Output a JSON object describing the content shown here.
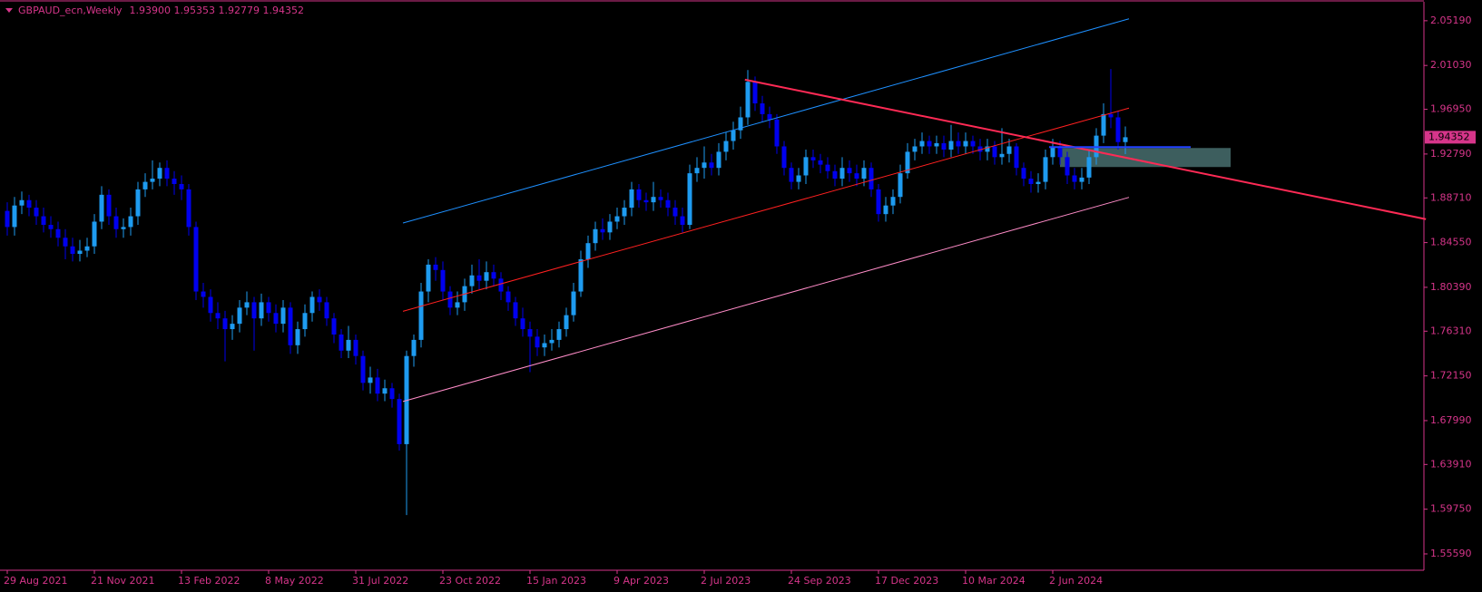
{
  "chart_data": {
    "type": "candlestick",
    "title": "GBPAUD_ecn,Weekly",
    "ohlc_label": "1.93900 1.95353 1.92779 1.94352",
    "axis_color": "#d6358a",
    "background": "#000000",
    "up_color": "#1e9bf0",
    "down_color": "#0000ee",
    "ylim": [
      1.5407,
      2.0695
    ],
    "yticks": [
      {
        "value": 2.0519,
        "label": "2.05190"
      },
      {
        "value": 2.0103,
        "label": "2.01030"
      },
      {
        "value": 1.9695,
        "label": "1.96950"
      },
      {
        "value": 1.9279,
        "label": "1.92790"
      },
      {
        "value": 1.8871,
        "label": "1.88710"
      },
      {
        "value": 1.8455,
        "label": "1.84550"
      },
      {
        "value": 1.8039,
        "label": "1.80390"
      },
      {
        "value": 1.7631,
        "label": "1.76310"
      },
      {
        "value": 1.7215,
        "label": "1.72150"
      },
      {
        "value": 1.6799,
        "label": "1.67990"
      },
      {
        "value": 1.6391,
        "label": "1.63910"
      },
      {
        "value": 1.5975,
        "label": "1.59750"
      },
      {
        "value": 1.5559,
        "label": "1.55590"
      }
    ],
    "last_price": {
      "value": 1.94352,
      "label": "1.94352"
    },
    "categories": [
      "29 Aug 2021",
      null,
      null,
      null,
      null,
      null,
      null,
      null,
      null,
      null,
      null,
      null,
      "21 Nov 2021",
      null,
      null,
      null,
      null,
      null,
      null,
      null,
      null,
      null,
      null,
      null,
      "13 Feb 2022",
      null,
      null,
      null,
      null,
      null,
      null,
      null,
      null,
      null,
      null,
      null,
      "8 May 2022",
      null,
      null,
      null,
      null,
      null,
      null,
      null,
      null,
      null,
      null,
      null,
      "31 Jul 2022",
      null,
      null,
      null,
      null,
      null,
      null,
      null,
      null,
      null,
      null,
      null,
      "23 Oct 2022",
      null,
      null,
      null,
      null,
      null,
      null,
      null,
      null,
      null,
      null,
      null,
      "15 Jan 2023",
      null,
      null,
      null,
      null,
      null,
      null,
      null,
      null,
      null,
      null,
      null,
      "9 Apr 2023",
      null,
      null,
      null,
      null,
      null,
      null,
      null,
      null,
      null,
      null,
      null,
      "2 Jul 2023",
      null,
      null,
      null,
      null,
      null,
      null,
      null,
      null,
      null,
      null,
      null,
      "24 Sep 2023",
      null,
      null,
      null,
      null,
      null,
      null,
      null,
      null,
      null,
      null,
      null,
      "17 Dec 2023",
      null,
      null,
      null,
      null,
      null,
      null,
      null,
      null,
      null,
      null,
      null,
      "10 Mar 2024",
      null,
      null,
      null,
      null,
      null,
      null,
      null,
      null,
      null,
      null,
      null,
      "2 Jun 2024",
      null,
      null,
      null,
      null,
      null,
      null,
      null,
      null,
      null,
      null
    ],
    "open": [
      1.875,
      1.86,
      1.88,
      1.885,
      1.878,
      1.87,
      1.862,
      1.858,
      1.85,
      1.842,
      1.835,
      1.838,
      1.842,
      1.865,
      1.89,
      1.87,
      1.858,
      1.86,
      1.87,
      1.895,
      1.902,
      1.905,
      1.915,
      1.905,
      1.9,
      1.895,
      1.86,
      1.8,
      1.795,
      1.78,
      1.775,
      1.765,
      1.77,
      1.785,
      1.79,
      1.775,
      1.79,
      1.78,
      1.77,
      1.785,
      1.75,
      1.765,
      1.78,
      1.795,
      1.79,
      1.775,
      1.76,
      1.745,
      1.755,
      1.74,
      1.715,
      1.72,
      1.705,
      1.71,
      1.7,
      1.658,
      1.74,
      1.755,
      1.8,
      1.825,
      1.82,
      1.8,
      1.785,
      1.79,
      1.805,
      1.815,
      1.81,
      1.818,
      1.812,
      1.8,
      1.79,
      1.775,
      1.765,
      1.758,
      1.748,
      1.752,
      1.755,
      1.765,
      1.778,
      1.8,
      1.83,
      1.845,
      1.858,
      1.855,
      1.865,
      1.87,
      1.878,
      1.895,
      1.885,
      1.883,
      1.888,
      1.885,
      1.878,
      1.87,
      1.862,
      1.91,
      1.915,
      1.92,
      1.915,
      1.93,
      1.94,
      1.95,
      1.962,
      1.995,
      1.975,
      1.965,
      1.96,
      1.935,
      1.915,
      1.902,
      1.908,
      1.925,
      1.922,
      1.918,
      1.912,
      1.905,
      1.915,
      1.91,
      1.905,
      1.915,
      1.895,
      1.872,
      1.88,
      1.888,
      1.91,
      1.93,
      1.935,
      1.94,
      1.935,
      1.938,
      1.932,
      1.94,
      1.935,
      1.94,
      1.935,
      1.93,
      1.935,
      1.925,
      1.928,
      1.935,
      1.915,
      1.905,
      1.9,
      1.902,
      1.925,
      1.935,
      1.925,
      1.908,
      1.902,
      1.906,
      1.925,
      1.945,
      1.965,
      1.962,
      1.939
    ],
    "high": [
      1.883,
      1.888,
      1.893,
      1.89,
      1.885,
      1.878,
      1.87,
      1.865,
      1.858,
      1.85,
      1.848,
      1.85,
      1.872,
      1.898,
      1.895,
      1.878,
      1.868,
      1.878,
      1.902,
      1.91,
      1.922,
      1.92,
      1.922,
      1.912,
      1.908,
      1.9,
      1.865,
      1.808,
      1.802,
      1.79,
      1.782,
      1.778,
      1.792,
      1.8,
      1.795,
      1.798,
      1.795,
      1.788,
      1.792,
      1.79,
      1.772,
      1.788,
      1.8,
      1.802,
      1.795,
      1.78,
      1.765,
      1.768,
      1.76,
      1.745,
      1.73,
      1.728,
      1.718,
      1.715,
      1.705,
      1.745,
      1.76,
      1.808,
      1.83,
      1.832,
      1.828,
      1.805,
      1.8,
      1.812,
      1.825,
      1.83,
      1.828,
      1.825,
      1.818,
      1.805,
      1.795,
      1.785,
      1.772,
      1.765,
      1.76,
      1.765,
      1.772,
      1.785,
      1.808,
      1.838,
      1.852,
      1.865,
      1.868,
      1.872,
      1.878,
      1.885,
      1.902,
      1.9,
      1.892,
      1.902,
      1.895,
      1.892,
      1.885,
      1.878,
      1.918,
      1.925,
      1.935,
      1.928,
      1.938,
      1.948,
      1.958,
      1.972,
      2.006,
      2.0,
      1.982,
      1.972,
      1.965,
      1.94,
      1.92,
      1.915,
      1.932,
      1.932,
      1.928,
      1.925,
      1.918,
      1.925,
      1.922,
      1.918,
      1.922,
      1.92,
      1.9,
      1.888,
      1.895,
      1.918,
      1.938,
      1.942,
      1.948,
      1.945,
      1.945,
      1.945,
      1.955,
      1.948,
      1.948,
      1.945,
      1.942,
      1.942,
      1.94,
      1.952,
      1.942,
      1.938,
      1.92,
      1.912,
      1.91,
      1.932,
      1.942,
      1.94,
      1.93,
      1.915,
      1.915,
      1.932,
      1.952,
      1.975,
      2.007,
      1.968,
      1.95353
    ],
    "low": [
      1.852,
      1.852,
      1.872,
      1.87,
      1.862,
      1.855,
      1.85,
      1.842,
      1.83,
      1.828,
      1.828,
      1.832,
      1.835,
      1.858,
      1.862,
      1.85,
      1.85,
      1.852,
      1.862,
      1.888,
      1.895,
      1.898,
      1.898,
      1.89,
      1.885,
      1.852,
      1.792,
      1.785,
      1.772,
      1.765,
      1.735,
      1.755,
      1.762,
      1.778,
      1.745,
      1.768,
      1.772,
      1.762,
      1.762,
      1.742,
      1.742,
      1.758,
      1.772,
      1.782,
      1.768,
      1.752,
      1.738,
      1.738,
      1.732,
      1.708,
      1.705,
      1.698,
      1.698,
      1.692,
      1.652,
      1.592,
      1.73,
      1.748,
      1.79,
      1.81,
      1.792,
      1.778,
      1.778,
      1.782,
      1.798,
      1.802,
      1.802,
      1.805,
      1.792,
      1.782,
      1.768,
      1.758,
      1.725,
      1.74,
      1.74,
      1.745,
      1.748,
      1.758,
      1.772,
      1.795,
      1.822,
      1.838,
      1.848,
      1.848,
      1.858,
      1.862,
      1.87,
      1.878,
      1.875,
      1.875,
      1.878,
      1.87,
      1.862,
      1.855,
      1.858,
      1.902,
      1.905,
      1.908,
      1.908,
      1.922,
      1.932,
      1.942,
      1.955,
      1.968,
      1.958,
      1.952,
      1.928,
      1.908,
      1.895,
      1.895,
      1.9,
      1.915,
      1.91,
      1.905,
      1.898,
      1.898,
      1.902,
      1.898,
      1.898,
      1.888,
      1.865,
      1.865,
      1.872,
      1.882,
      1.905,
      1.922,
      1.928,
      1.928,
      1.928,
      1.925,
      1.925,
      1.928,
      1.928,
      1.928,
      1.922,
      1.922,
      1.918,
      1.918,
      1.92,
      1.908,
      1.898,
      1.892,
      1.892,
      1.895,
      1.918,
      1.918,
      1.9,
      1.895,
      1.895,
      1.9,
      1.918,
      1.938,
      1.952,
      1.932,
      1.92779
    ],
    "close": [
      1.86,
      1.88,
      1.885,
      1.878,
      1.87,
      1.862,
      1.858,
      1.85,
      1.842,
      1.835,
      1.838,
      1.842,
      1.865,
      1.89,
      1.87,
      1.858,
      1.86,
      1.87,
      1.895,
      1.902,
      1.905,
      1.915,
      1.905,
      1.9,
      1.895,
      1.86,
      1.8,
      1.795,
      1.78,
      1.775,
      1.765,
      1.77,
      1.785,
      1.79,
      1.775,
      1.79,
      1.78,
      1.77,
      1.785,
      1.75,
      1.765,
      1.78,
      1.795,
      1.79,
      1.775,
      1.76,
      1.745,
      1.755,
      1.74,
      1.715,
      1.72,
      1.705,
      1.71,
      1.7,
      1.658,
      1.74,
      1.755,
      1.8,
      1.825,
      1.82,
      1.8,
      1.785,
      1.79,
      1.805,
      1.815,
      1.81,
      1.818,
      1.812,
      1.8,
      1.79,
      1.775,
      1.765,
      1.758,
      1.748,
      1.752,
      1.755,
      1.765,
      1.778,
      1.8,
      1.83,
      1.845,
      1.858,
      1.855,
      1.865,
      1.87,
      1.878,
      1.895,
      1.885,
      1.883,
      1.888,
      1.885,
      1.878,
      1.87,
      1.862,
      1.91,
      1.915,
      1.92,
      1.915,
      1.93,
      1.94,
      1.95,
      1.962,
      1.995,
      1.975,
      1.965,
      1.96,
      1.935,
      1.915,
      1.902,
      1.908,
      1.925,
      1.922,
      1.918,
      1.912,
      1.905,
      1.915,
      1.91,
      1.905,
      1.915,
      1.895,
      1.872,
      1.88,
      1.888,
      1.91,
      1.93,
      1.935,
      1.94,
      1.935,
      1.938,
      1.932,
      1.94,
      1.935,
      1.94,
      1.935,
      1.93,
      1.935,
      1.925,
      1.928,
      1.935,
      1.915,
      1.905,
      1.9,
      1.902,
      1.925,
      1.935,
      1.925,
      1.908,
      1.902,
      1.906,
      1.925,
      1.945,
      1.965,
      1.962,
      1.939,
      1.94352
    ],
    "zones": [
      {
        "color": "#3d5e5e",
        "x": [
          145,
          168.5
        ],
        "y": [
          1.9158,
          1.9335
        ]
      }
    ],
    "lines": [
      {
        "color": "#1e90ff",
        "width": 1,
        "start": [
          54.5,
          1.8637
        ],
        "end": [
          154.5,
          2.0537
        ]
      },
      {
        "color": "#ff2020",
        "width": 1,
        "start": [
          54.5,
          1.7816
        ],
        "end": [
          154.5,
          1.9706
        ]
      },
      {
        "color": "#ff8cc8",
        "width": 1,
        "start": [
          54.5,
          1.6977
        ],
        "end": [
          154.5,
          1.8876
        ]
      },
      {
        "color": "#ff2a55",
        "width": 2,
        "start": [
          101.6,
          1.9971
        ],
        "end": [
          195.4,
          1.8673
        ]
      },
      {
        "color": "#2040ff",
        "width": 2,
        "start": [
          143.5,
          1.9344
        ],
        "end": [
          163,
          1.9344
        ]
      }
    ]
  }
}
